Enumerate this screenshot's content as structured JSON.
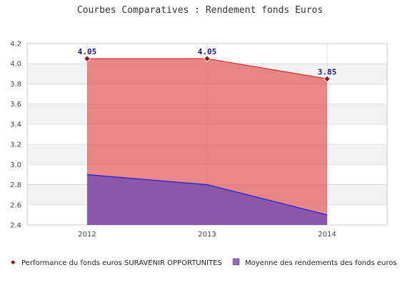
{
  "chart_data": {
    "type": "area",
    "title": "Courbes Comparatives : Rendement fonds Euros",
    "xlabel": "",
    "ylabel": "",
    "categories": [
      "2012",
      "2013",
      "2014"
    ],
    "ylim": [
      2.4,
      4.2
    ],
    "yticks": [
      "2.4",
      "2.6",
      "2.8",
      "3.0",
      "3.2",
      "3.4",
      "3.6",
      "3.8",
      "4.0",
      "4.2"
    ],
    "grid": true,
    "legend_position": "bottom",
    "series": [
      {
        "name": "Performance du fonds euros SURAVENIR OPPORTUNITES",
        "values": [
          4.05,
          4.05,
          3.85
        ],
        "labels": [
          "4.05",
          "4.05",
          "3.85"
        ],
        "line_color": "#e03030",
        "fill_color": "#e06060",
        "marker_color": "#8b1a1a"
      },
      {
        "name": "Moyenne des rendements des fonds euros",
        "values": [
          2.9,
          2.8,
          2.5
        ],
        "line_color": "#2020d0",
        "fill_color": "#7a4fb0"
      }
    ]
  }
}
